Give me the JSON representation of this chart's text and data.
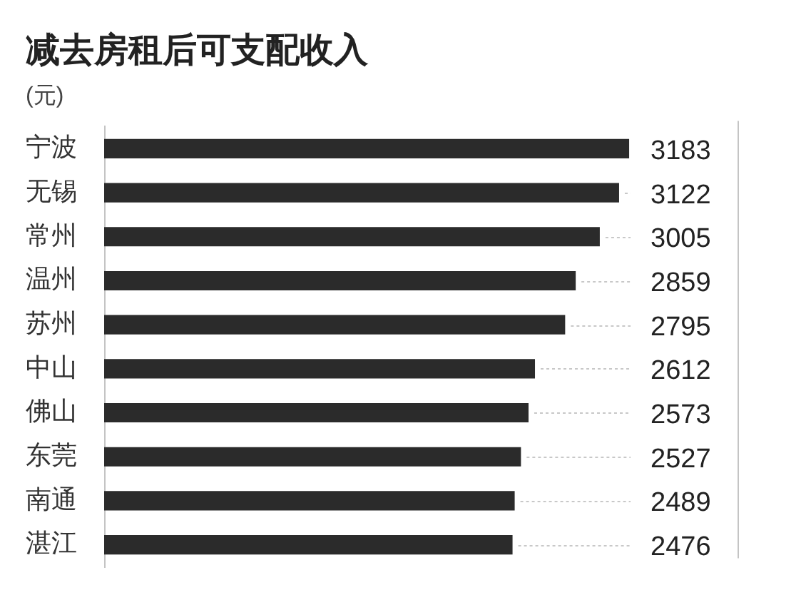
{
  "chart_data": {
    "type": "bar",
    "orientation": "horizontal",
    "title": "减去房租后可支配收入",
    "xlabel": "(元)",
    "categories": [
      "宁波",
      "无锡",
      "常州",
      "温州",
      "苏州",
      "中山",
      "佛山",
      "东莞",
      "南通",
      "湛江"
    ],
    "values": [
      3183,
      3122,
      3005,
      2859,
      2795,
      2612,
      2573,
      2527,
      2489,
      2476
    ],
    "color": "#2b2b2b",
    "xlim": [
      0,
      3840
    ],
    "tick_labels": "y",
    "data_labels": true
  }
}
